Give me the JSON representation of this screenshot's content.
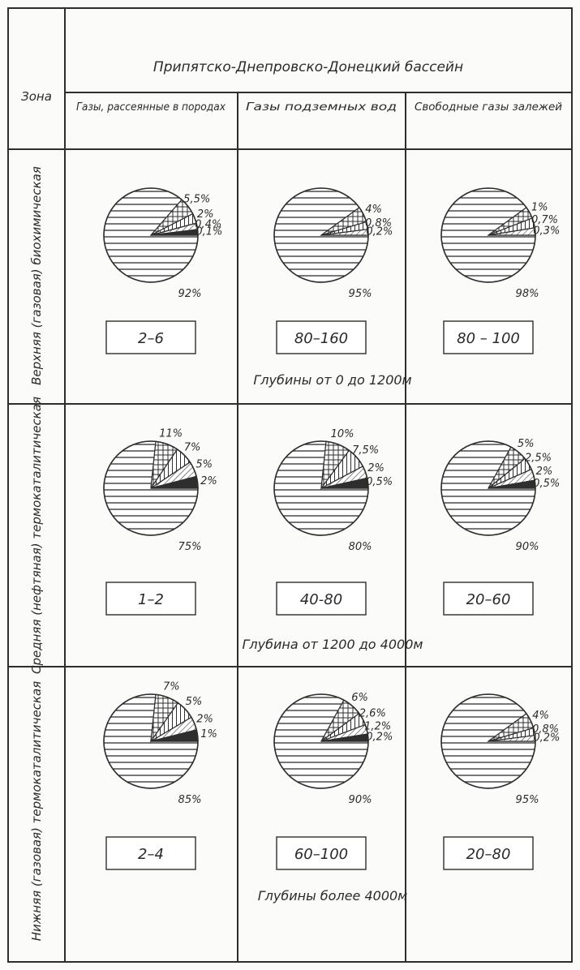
{
  "colors": {
    "ink": "#2e2e2e",
    "paper": "#fbfbfa"
  },
  "table": {
    "zone_header": "Зона",
    "basin_title": "Припятско-Днепровско-Донецкий бассейн",
    "columns": [
      "Газы, рассеянные в породах",
      "Газы подземных вод",
      "Свободные газы залежей"
    ]
  },
  "chart_data": {
    "type": "pie",
    "title": "Припятско-Днепровско-Донецкий бассейн",
    "columns": [
      "Газы, рассеянные в породах",
      "Газы подземных вод",
      "Свободные газы залежей"
    ],
    "rows": [
      {
        "zone": "Верхняя (газовая) биохимическая",
        "depth_label": "Глубины от 0 до 1200м",
        "cells": [
          {
            "box": "2–6",
            "slices": [
              {
                "value": 92,
                "label": "92%",
                "pattern": "hlines"
              },
              {
                "value": 5.5,
                "label": "5,5%",
                "pattern": "crosshatch"
              },
              {
                "value": 2,
                "label": "2%",
                "pattern": "vlines"
              },
              {
                "value": 0.4,
                "label": "0,4%",
                "pattern": "diagonal"
              },
              {
                "value": 0.1,
                "label": "0,1%",
                "pattern": "solid"
              }
            ]
          },
          {
            "box": "80–160",
            "slices": [
              {
                "value": 95,
                "label": "95%",
                "pattern": "hlines"
              },
              {
                "value": 4,
                "label": "4%",
                "pattern": "crosshatch"
              },
              {
                "value": 0.8,
                "label": "0,8%",
                "pattern": "vlines"
              },
              {
                "value": 0.2,
                "label": "0,2%",
                "pattern": "diagonal"
              }
            ]
          },
          {
            "box": "80 – 100",
            "slices": [
              {
                "value": 98,
                "label": "98%",
                "pattern": "hlines"
              },
              {
                "value": 1,
                "label": "1%",
                "pattern": "crosshatch"
              },
              {
                "value": 0.7,
                "label": "0,7%",
                "pattern": "vlines"
              },
              {
                "value": 0.3,
                "label": "0,3%",
                "pattern": "diagonal"
              }
            ]
          }
        ]
      },
      {
        "zone": "Средняя (нефтяная) термокаталитическая",
        "depth_label": "Глубина от 1200 до 4000м",
        "cells": [
          {
            "box": "1–2",
            "slices": [
              {
                "value": 75,
                "label": "75%",
                "pattern": "hlines"
              },
              {
                "value": 11,
                "label": "11%",
                "pattern": "crosshatch"
              },
              {
                "value": 7,
                "label": "7%",
                "pattern": "vlines"
              },
              {
                "value": 5,
                "label": "5%",
                "pattern": "diagonal"
              },
              {
                "value": 2,
                "label": "2%",
                "pattern": "solid"
              }
            ]
          },
          {
            "box": "40-80",
            "slices": [
              {
                "value": 80,
                "label": "80%",
                "pattern": "hlines"
              },
              {
                "value": 10,
                "label": "10%",
                "pattern": "crosshatch"
              },
              {
                "value": 7.5,
                "label": "7,5%",
                "pattern": "vlines"
              },
              {
                "value": 2,
                "label": "2%",
                "pattern": "diagonal"
              },
              {
                "value": 0.5,
                "label": "0,5%",
                "pattern": "solid"
              }
            ]
          },
          {
            "box": "20–60",
            "slices": [
              {
                "value": 90,
                "label": "90%",
                "pattern": "hlines"
              },
              {
                "value": 5,
                "label": "5%",
                "pattern": "crosshatch"
              },
              {
                "value": 2.5,
                "label": "2,5%",
                "pattern": "vlines"
              },
              {
                "value": 2,
                "label": "2%",
                "pattern": "diagonal"
              },
              {
                "value": 0.5,
                "label": "0,5%",
                "pattern": "solid"
              }
            ]
          }
        ]
      },
      {
        "zone": "Нижняя (газовая) термокаталитическая",
        "depth_label": "Глубины более 4000м",
        "cells": [
          {
            "box": "2–4",
            "slices": [
              {
                "value": 85,
                "label": "85%",
                "pattern": "hlines"
              },
              {
                "value": 7,
                "label": "7%",
                "pattern": "crosshatch"
              },
              {
                "value": 5,
                "label": "5%",
                "pattern": "vlines"
              },
              {
                "value": 2,
                "label": "2%",
                "pattern": "diagonal"
              },
              {
                "value": 1,
                "label": "1%",
                "pattern": "solid"
              }
            ]
          },
          {
            "box": "60–100",
            "slices": [
              {
                "value": 90,
                "label": "90%",
                "pattern": "hlines"
              },
              {
                "value": 6,
                "label": "6%",
                "pattern": "crosshatch"
              },
              {
                "value": 2.6,
                "label": "2,6%",
                "pattern": "vlines"
              },
              {
                "value": 1.2,
                "label": "1,2%",
                "pattern": "diagonal"
              },
              {
                "value": 0.2,
                "label": "0,2%",
                "pattern": "solid"
              }
            ]
          },
          {
            "box": "20–80",
            "slices": [
              {
                "value": 95,
                "label": "95%",
                "pattern": "hlines"
              },
              {
                "value": 4,
                "label": "4%",
                "pattern": "crosshatch"
              },
              {
                "value": 0.8,
                "label": "0,8%",
                "pattern": "vlines"
              },
              {
                "value": 0.2,
                "label": "0,2%",
                "pattern": "diagonal"
              }
            ]
          }
        ]
      }
    ]
  }
}
